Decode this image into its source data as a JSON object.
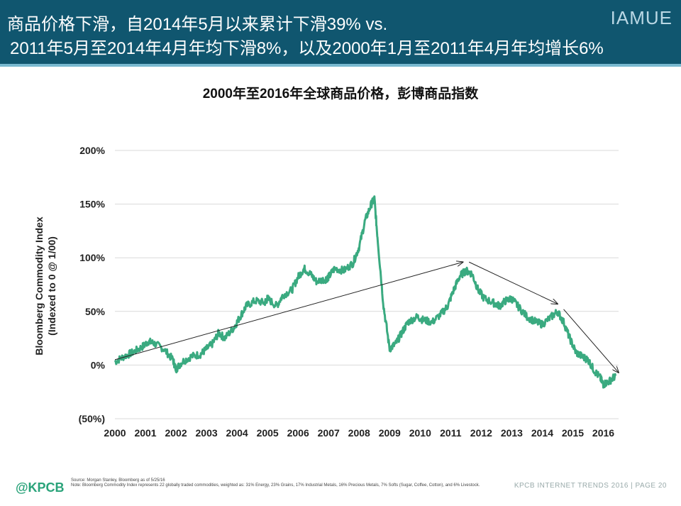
{
  "header": {
    "line1": "商品价格下滑，自2014年5月以来累计下滑39% vs.",
    "line2": "2011年5月至2014年4月年均下滑8%，以及2000年1月至2011年4月年均增长6%",
    "brand": "IAMUE",
    "bg_color": "#10566f"
  },
  "footer": {
    "logo": "@KPCB",
    "source": "Source: Morgan Stanley, Bloomberg as of 5/25/16",
    "note": "Note: Bloomberg Commodity Index represents 22 globally traded commodities, weighted as: 31% Energy, 23% Grains, 17% Industrial Metals, 16% Precious Metals, 7% Softs (Sugar, Coffee, Cotton), and 6% Livestock.",
    "page": "KPCB INTERNET TRENDS 2016 | PAGE 20"
  },
  "chart_data": {
    "type": "line",
    "title": "2000年至2016年全球商品价格，彭博商品指数",
    "ylabel_line1": "Bloomberg Commodity Index",
    "ylabel_line2": "(Indexed to 0 @ 1/00)",
    "ylim": [
      -50,
      200
    ],
    "xlim": [
      2000,
      2016.5
    ],
    "y_ticks": [
      {
        "value": 200,
        "label": "200%"
      },
      {
        "value": 150,
        "label": "150%"
      },
      {
        "value": 100,
        "label": "100%"
      },
      {
        "value": 50,
        "label": "50%"
      },
      {
        "value": 0,
        "label": "0%"
      },
      {
        "value": -50,
        "label": "(50%)"
      }
    ],
    "x_ticks": [
      "2000",
      "2001",
      "2002",
      "2003",
      "2004",
      "2005",
      "2006",
      "2007",
      "2008",
      "2009",
      "2010",
      "2011",
      "2012",
      "2013",
      "2014",
      "2015",
      "2016"
    ],
    "grid": true,
    "line_color": "#3aaa80",
    "series": [
      {
        "x": [
          2000.0,
          2000.3,
          2000.6,
          2000.9,
          2001.1,
          2001.3,
          2001.6,
          2001.9,
          2002.0,
          2002.2,
          2002.5,
          2002.8,
          2003.0,
          2003.2,
          2003.4,
          2003.6,
          2003.9,
          2004.1,
          2004.3,
          2004.6,
          2004.9,
          2005.0,
          2005.3,
          2005.5,
          2005.8,
          2006.0,
          2006.2,
          2006.4,
          2006.6,
          2006.9,
          2007.0,
          2007.2,
          2007.5,
          2007.8,
          2008.0,
          2008.2,
          2008.4,
          2008.5,
          2008.6,
          2008.8,
          2009.0,
          2009.2,
          2009.4,
          2009.6,
          2009.9,
          2010.1,
          2010.4,
          2010.7,
          2010.9,
          2011.1,
          2011.3,
          2011.5,
          2011.7,
          2011.9,
          2012.1,
          2012.4,
          2012.6,
          2012.8,
          2013.0,
          2013.2,
          2013.5,
          2013.8,
          2014.0,
          2014.3,
          2014.5,
          2014.7,
          2014.9,
          2015.1,
          2015.3,
          2015.5,
          2015.7,
          2015.9,
          2016.0,
          2016.2,
          2016.4
        ],
        "y": [
          3,
          8,
          12,
          17,
          22,
          20,
          15,
          5,
          -4,
          3,
          8,
          10,
          15,
          20,
          30,
          25,
          35,
          45,
          55,
          60,
          58,
          62,
          55,
          65,
          70,
          82,
          90,
          85,
          78,
          80,
          82,
          90,
          88,
          95,
          110,
          135,
          150,
          155,
          120,
          55,
          15,
          20,
          30,
          40,
          45,
          42,
          40,
          48,
          55,
          70,
          83,
          88,
          85,
          70,
          62,
          58,
          55,
          60,
          62,
          55,
          45,
          40,
          38,
          45,
          50,
          40,
          25,
          12,
          8,
          5,
          -5,
          -12,
          -18,
          -15,
          -10
        ]
      }
    ],
    "annotations": [
      {
        "type": "arrow",
        "from": [
          2000.0,
          5
        ],
        "to": [
          2011.4,
          96
        ]
      },
      {
        "type": "arrow",
        "from": [
          2011.6,
          96
        ],
        "to": [
          2014.5,
          57
        ]
      },
      {
        "type": "arrow",
        "from": [
          2014.7,
          52
        ],
        "to": [
          2016.5,
          -7
        ]
      }
    ]
  }
}
